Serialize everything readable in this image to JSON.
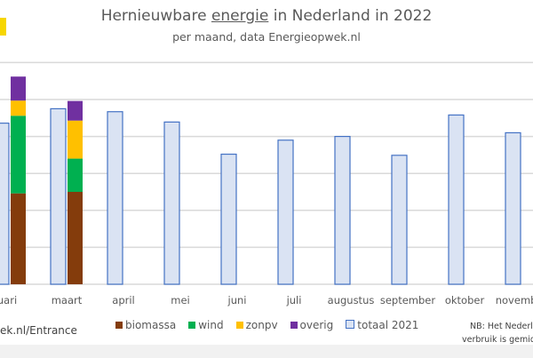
{
  "chart_data": {
    "type": "bar",
    "title_pre": "Hernieuwbare ",
    "title_u": "energie",
    "title_post": " in Nederland in 2022",
    "subtitle": "per maand, data Energieopwek.nl",
    "xlabel": "",
    "ylabel": "",
    "ylim": [
      0,
      6
    ],
    "grid": true,
    "categories": [
      "februari",
      "maart",
      "april",
      "mei",
      "juni",
      "juli",
      "augustus",
      "september",
      "oktober",
      "november"
    ],
    "category_labels_visible": [
      "uari",
      "maart",
      "april",
      "mei",
      "juni",
      "juli",
      "augustus",
      "september",
      "oktober",
      "november"
    ],
    "stacked_2022": [
      {
        "name": "biomassa",
        "color": "#843c0c",
        "values": [
          2.46,
          2.5,
          null,
          null,
          null,
          null,
          null,
          null,
          null,
          null
        ]
      },
      {
        "name": "wind",
        "color": "#00b050",
        "values": [
          2.1,
          0.9,
          null,
          null,
          null,
          null,
          null,
          null,
          null,
          null
        ]
      },
      {
        "name": "zonpv",
        "color": "#ffc000",
        "values": [
          0.41,
          1.03,
          null,
          null,
          null,
          null,
          null,
          null,
          null,
          null
        ]
      },
      {
        "name": "overig",
        "color": "#7030a0",
        "values": [
          0.65,
          0.53,
          null,
          null,
          null,
          null,
          null,
          null,
          null,
          null
        ]
      }
    ],
    "totaal_2021": {
      "name": "totaal 2021",
      "fill": "#dae3f3",
      "stroke": "#4472c4",
      "values": [
        4.36,
        4.75,
        4.67,
        4.39,
        3.52,
        3.9,
        4.0,
        3.49,
        4.58,
        4.1
      ]
    },
    "legend_position": "bottom"
  },
  "source": "ek.nl/Entrance",
  "note_line1": "NB: Het Nederl",
  "note_line2": "verbruik is gemidd"
}
